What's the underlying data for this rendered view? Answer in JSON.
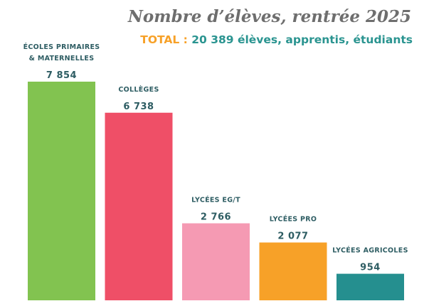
{
  "header": {
    "title": "Nombre d’élèves, rentrée 2025",
    "total_label": "TOTAL : ",
    "total_value": "20 389 élèves, apprentis, étudiants"
  },
  "colors": {
    "title": "#6e6e6e",
    "total_label": "#f7a128",
    "total_value": "#2a9490",
    "category_text": "#2e5d63",
    "value_text": "#2e5d63"
  },
  "chart_data": {
    "type": "bar",
    "title": "Nombre d’élèves, rentrée 2025",
    "subtitle": "TOTAL : 20 389 élèves, apprentis, étudiants",
    "xlabel": "",
    "ylabel": "",
    "ylim": [
      0,
      7854
    ],
    "grid": false,
    "legend": "none",
    "categories": [
      [
        "ÉCOLES PRIMAIRES",
        "& MATERNELLES"
      ],
      [
        "COLLÈGES"
      ],
      [
        "LYCÉES EG/T"
      ],
      [
        "LYCÉES PRO"
      ],
      [
        "LYCÉES AGRICOLES"
      ]
    ],
    "values": [
      7854,
      6738,
      2766,
      2077,
      954
    ],
    "value_labels": [
      "7 854",
      "6 738",
      "2 766",
      "2 077",
      "954"
    ],
    "bar_colors": [
      "#82c350",
      "#ef4f67",
      "#f59ab3",
      "#f7a128",
      "#258f8f"
    ]
  }
}
